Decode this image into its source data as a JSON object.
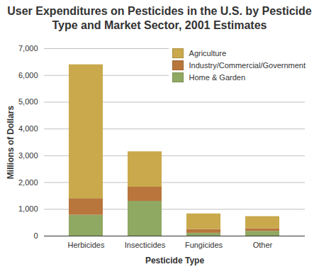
{
  "chart_data": {
    "type": "bar",
    "stacked": true,
    "title": "User Expenditures on Pesticides in the U.S. by Pesticide Type and Market Sector, 2001 Estimates",
    "x_label": "Pesticide Type",
    "y_label": "Millions of Dollars",
    "categories": [
      "Herbicides",
      "Insecticides",
      "Fungicides",
      "Other"
    ],
    "series": [
      {
        "name": "Agriculture",
        "color": "#c9a94c",
        "values": [
          5000,
          1320,
          580,
          450
        ]
      },
      {
        "name": "Industry/Commercial/Government",
        "color": "#b8763c",
        "values": [
          620,
          530,
          140,
          100
        ]
      },
      {
        "name": "Home & Garden",
        "color": "#8fa862",
        "values": [
          780,
          1300,
          110,
          180
        ]
      }
    ],
    "ylim": [
      0,
      7000
    ],
    "yticks": [
      0,
      {
        "value": 1000,
        "label": "1,000"
      },
      {
        "value": 2000,
        "label": "2,000"
      },
      {
        "value": 3000,
        "label": "3,000"
      },
      {
        "value": 4000,
        "label": "4,000"
      },
      {
        "value": 5000,
        "label": "5,000"
      },
      {
        "value": 6000,
        "label": "6,000"
      },
      {
        "value": 7000,
        "label": "7,000"
      }
    ],
    "grid": true,
    "legend": "top-right"
  }
}
